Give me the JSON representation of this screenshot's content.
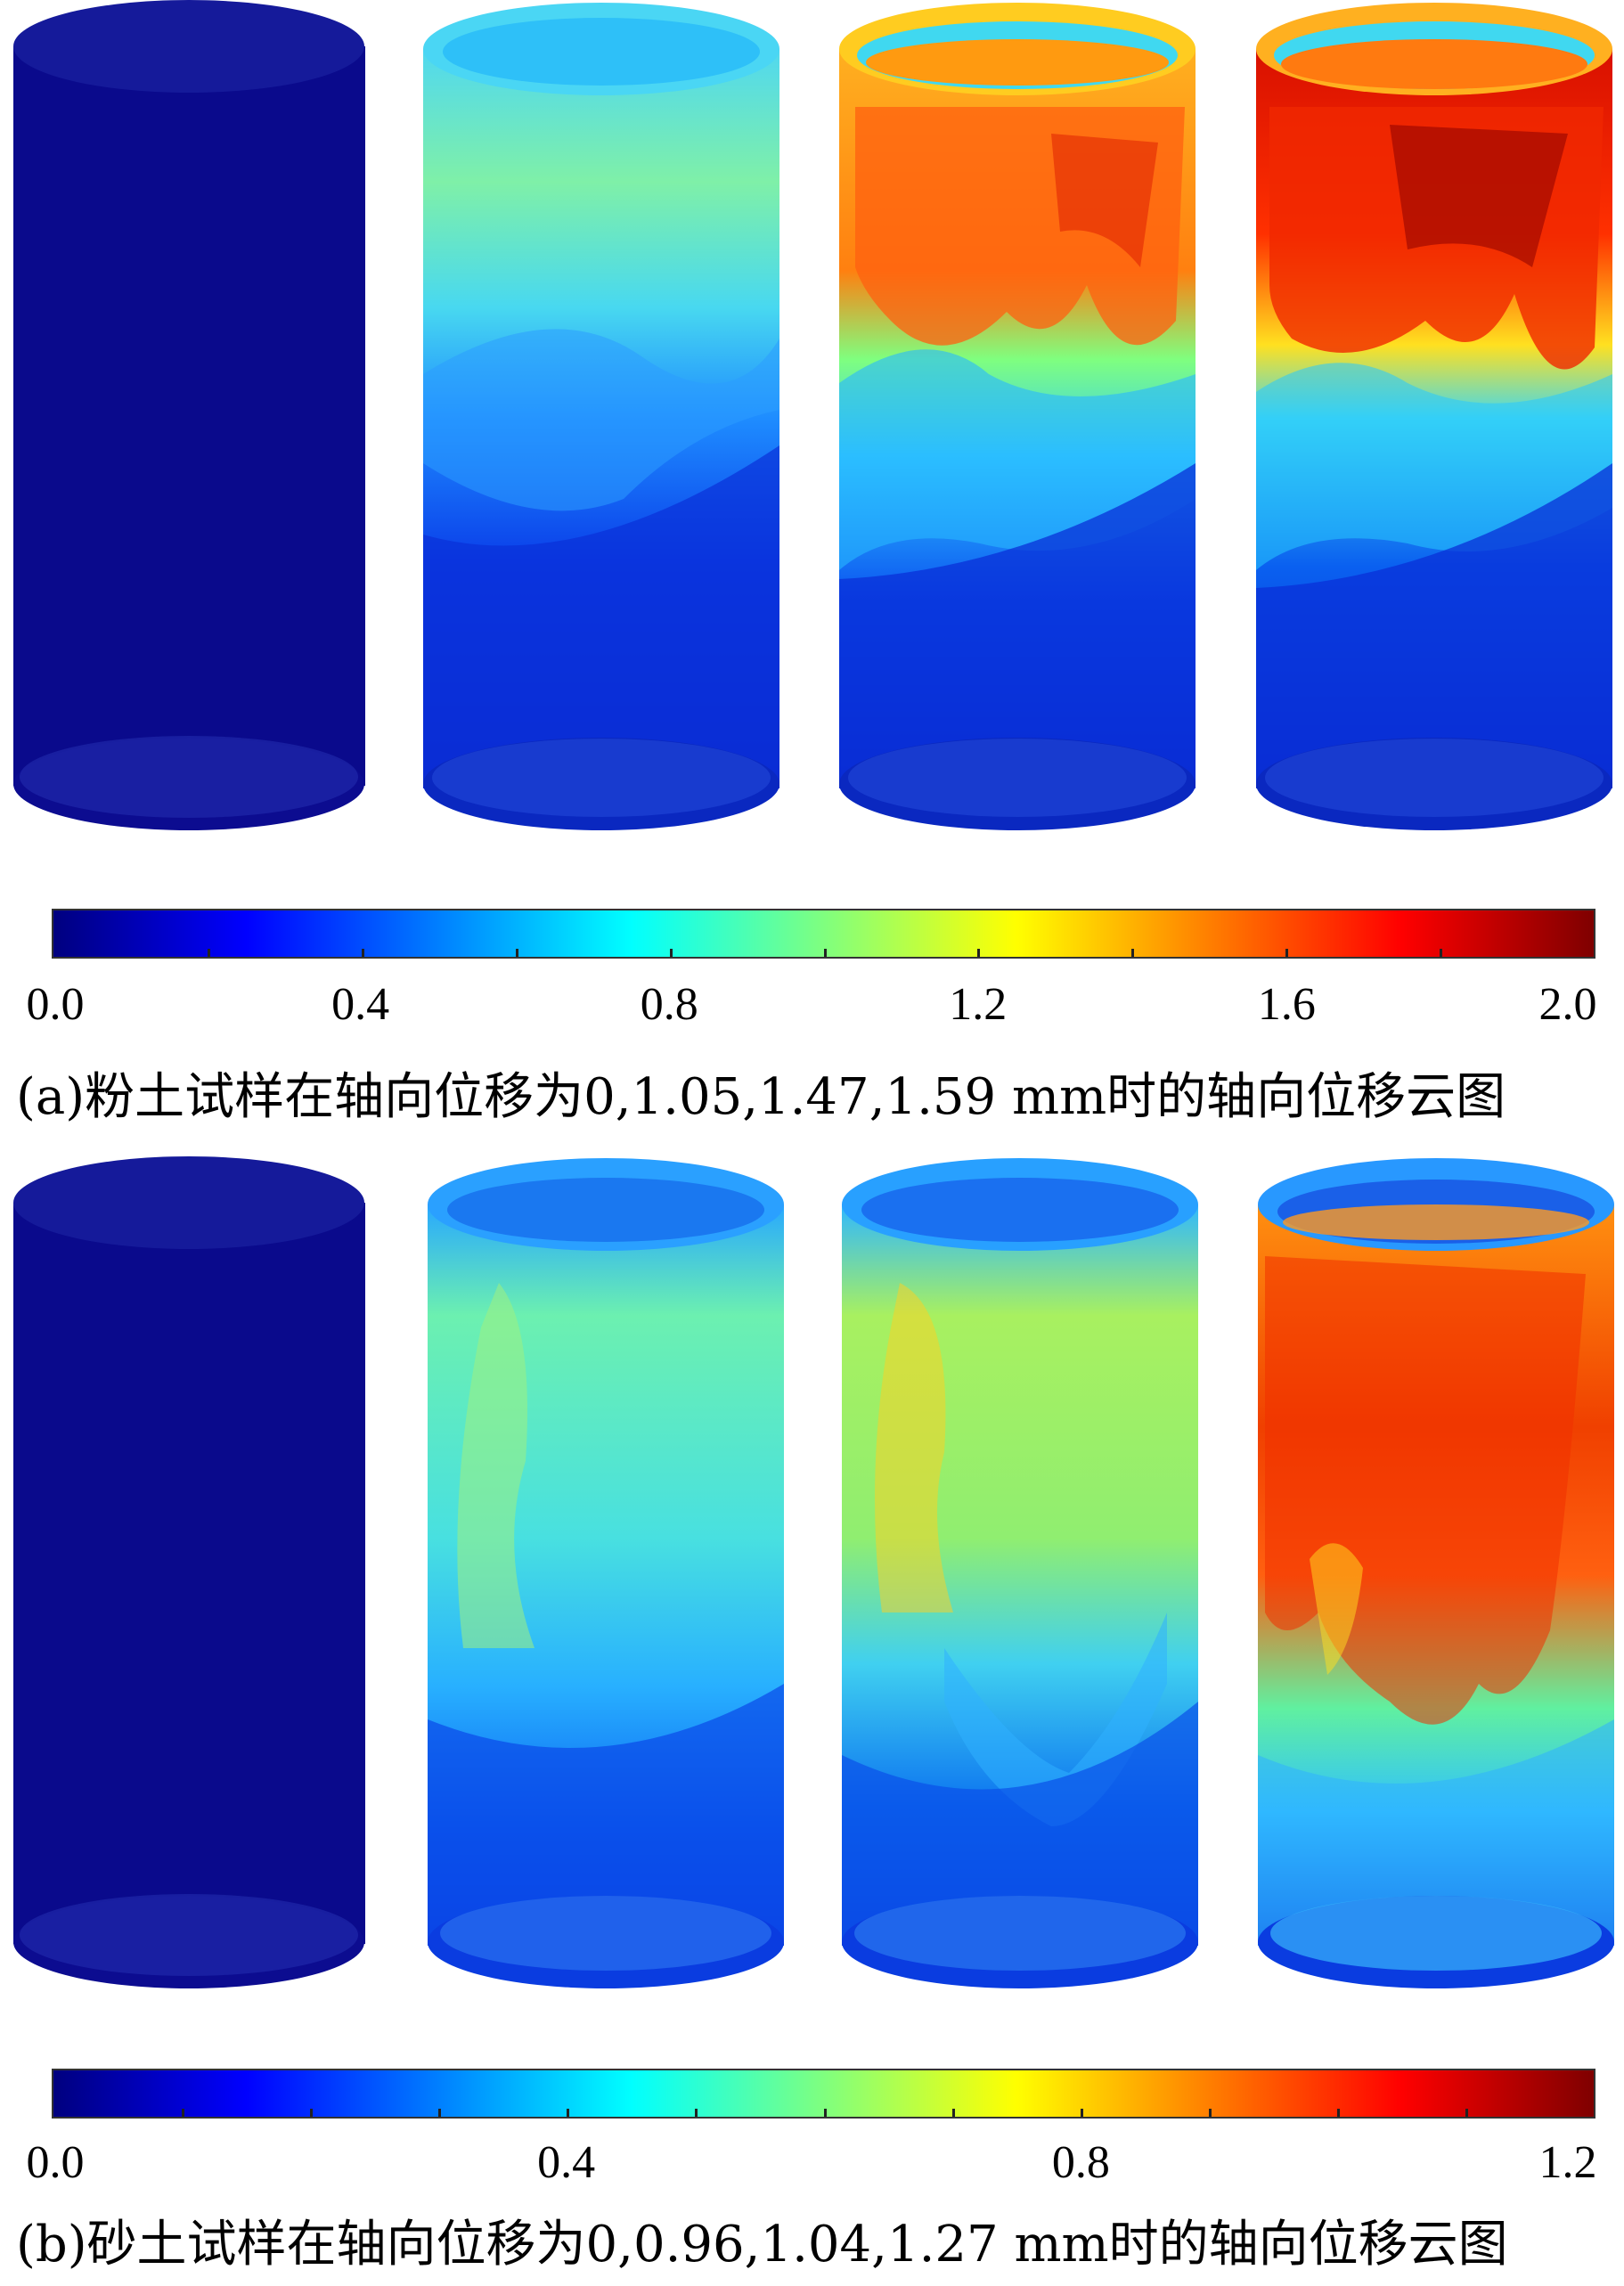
{
  "panel_a": {
    "caption": "(a)粉土试样在轴向位移为0,1.05,1.47,1.59 mm时的轴向位移云图",
    "colorbar": {
      "min": 0.0,
      "max": 2.0,
      "tick_labels": [
        "0.0",
        "0.4",
        "0.8",
        "1.2",
        "1.6",
        "2.0"
      ]
    },
    "specimen_axial_displacements_mm": [
      0,
      1.05,
      1.47,
      1.59
    ]
  },
  "panel_b": {
    "caption": "(b)砂土试样在轴向位移为0,0.96,1.04,1.27 mm时的轴向位移云图",
    "colorbar": {
      "min": 0.0,
      "max": 1.2,
      "tick_labels": [
        "0.0",
        "0.4",
        "0.8",
        "1.2"
      ]
    },
    "specimen_axial_displacements_mm": [
      0,
      0.96,
      1.04,
      1.27
    ]
  },
  "colormap": "jet",
  "colors": {
    "jet": [
      "#00007f",
      "#0000ff",
      "#007fff",
      "#00ffff",
      "#7fff7f",
      "#ffff00",
      "#ff7f00",
      "#ff0000",
      "#7f0000"
    ]
  }
}
